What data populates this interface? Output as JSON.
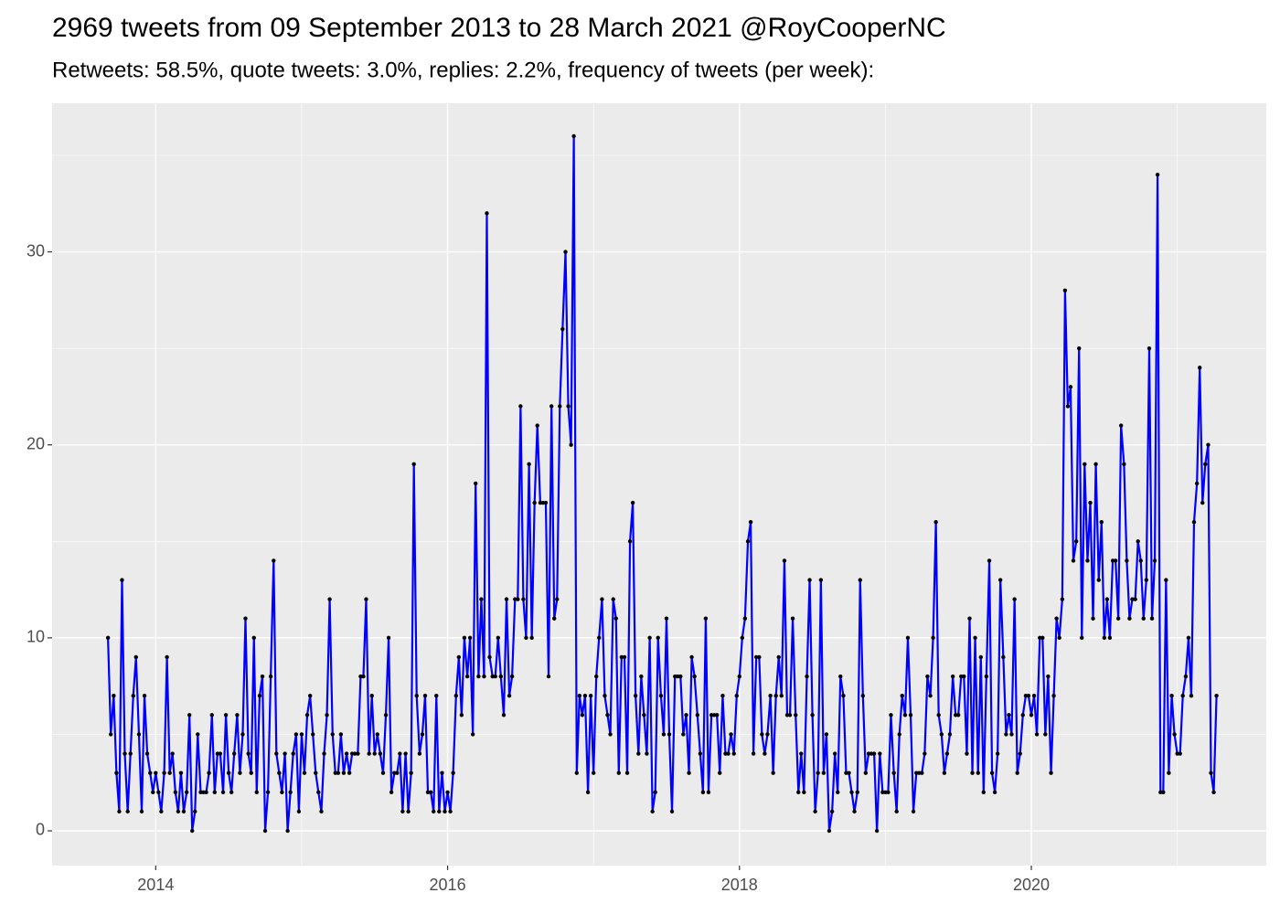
{
  "chart_data": {
    "type": "line",
    "title": "2969 tweets from 09 September 2013 to 28 March 2021 @RoyCooperNC",
    "subtitle": "Retweets: 58.5%, quote tweets: 3.0%, replies: 2.2%, frequency of tweets (per week):",
    "xlim": [
      2013.29,
      2021.61
    ],
    "xticks": [
      2014,
      2016,
      2018,
      2020
    ],
    "ylim": [
      -1.8,
      37.7
    ],
    "yticks": [
      0,
      10,
      20,
      30
    ],
    "grid": true,
    "line_color": "#0000ff",
    "point_color": "#000000",
    "x": [
      2013.673,
      2013.692,
      2013.712,
      2013.731,
      2013.75,
      2013.769,
      2013.788,
      2013.808,
      2013.827,
      2013.846,
      2013.865,
      2013.885,
      2013.904,
      2013.923,
      2013.942,
      2013.962,
      2013.981,
      2014.0,
      2014.019,
      2014.038,
      2014.058,
      2014.077,
      2014.096,
      2014.115,
      2014.135,
      2014.154,
      2014.173,
      2014.192,
      2014.212,
      2014.231,
      2014.25,
      2014.269,
      2014.288,
      2014.308,
      2014.327,
      2014.346,
      2014.365,
      2014.385,
      2014.404,
      2014.423,
      2014.442,
      2014.462,
      2014.481,
      2014.5,
      2014.519,
      2014.538,
      2014.558,
      2014.577,
      2014.596,
      2014.615,
      2014.635,
      2014.654,
      2014.673,
      2014.692,
      2014.712,
      2014.731,
      2014.75,
      2014.769,
      2014.788,
      2014.808,
      2014.827,
      2014.846,
      2014.865,
      2014.885,
      2014.904,
      2014.923,
      2014.942,
      2014.962,
      2014.981,
      2015.0,
      2015.019,
      2015.038,
      2015.058,
      2015.077,
      2015.096,
      2015.115,
      2015.135,
      2015.154,
      2015.173,
      2015.192,
      2015.212,
      2015.231,
      2015.25,
      2015.269,
      2015.288,
      2015.308,
      2015.327,
      2015.346,
      2015.365,
      2015.385,
      2015.404,
      2015.423,
      2015.442,
      2015.462,
      2015.481,
      2015.5,
      2015.519,
      2015.538,
      2015.558,
      2015.577,
      2015.596,
      2015.615,
      2015.635,
      2015.654,
      2015.673,
      2015.692,
      2015.712,
      2015.731,
      2015.75,
      2015.769,
      2015.788,
      2015.808,
      2015.827,
      2015.846,
      2015.865,
      2015.885,
      2015.904,
      2015.923,
      2015.942,
      2015.962,
      2015.981,
      2016.0,
      2016.019,
      2016.038,
      2016.058,
      2016.077,
      2016.096,
      2016.115,
      2016.135,
      2016.154,
      2016.173,
      2016.192,
      2016.212,
      2016.231,
      2016.25,
      2016.269,
      2016.288,
      2016.308,
      2016.327,
      2016.346,
      2016.365,
      2016.385,
      2016.404,
      2016.423,
      2016.442,
      2016.462,
      2016.481,
      2016.5,
      2016.519,
      2016.538,
      2016.558,
      2016.577,
      2016.596,
      2016.615,
      2016.635,
      2016.654,
      2016.673,
      2016.692,
      2016.712,
      2016.731,
      2016.75,
      2016.769,
      2016.788,
      2016.808,
      2016.827,
      2016.846,
      2016.865,
      2016.885,
      2016.904,
      2016.923,
      2016.942,
      2016.962,
      2016.981,
      2017.0,
      2017.019,
      2017.038,
      2017.058,
      2017.077,
      2017.096,
      2017.115,
      2017.135,
      2017.154,
      2017.173,
      2017.192,
      2017.212,
      2017.231,
      2017.25,
      2017.269,
      2017.288,
      2017.308,
      2017.327,
      2017.346,
      2017.365,
      2017.385,
      2017.404,
      2017.423,
      2017.442,
      2017.462,
      2017.481,
      2017.5,
      2017.519,
      2017.538,
      2017.558,
      2017.577,
      2017.596,
      2017.615,
      2017.635,
      2017.654,
      2017.673,
      2017.692,
      2017.712,
      2017.731,
      2017.75,
      2017.769,
      2017.788,
      2017.808,
      2017.827,
      2017.846,
      2017.865,
      2017.885,
      2017.904,
      2017.923,
      2017.942,
      2017.962,
      2017.981,
      2018.0,
      2018.019,
      2018.038,
      2018.058,
      2018.077,
      2018.096,
      2018.115,
      2018.135,
      2018.154,
      2018.173,
      2018.192,
      2018.212,
      2018.231,
      2018.25,
      2018.269,
      2018.288,
      2018.308,
      2018.327,
      2018.346,
      2018.365,
      2018.385,
      2018.404,
      2018.423,
      2018.442,
      2018.462,
      2018.481,
      2018.5,
      2018.519,
      2018.538,
      2018.558,
      2018.577,
      2018.596,
      2018.615,
      2018.635,
      2018.654,
      2018.673,
      2018.692,
      2018.712,
      2018.731,
      2018.75,
      2018.769,
      2018.788,
      2018.808,
      2018.827,
      2018.846,
      2018.865,
      2018.885,
      2018.904,
      2018.923,
      2018.942,
      2018.962,
      2018.981,
      2019.0,
      2019.019,
      2019.038,
      2019.058,
      2019.077,
      2019.096,
      2019.115,
      2019.135,
      2019.154,
      2019.173,
      2019.192,
      2019.212,
      2019.231,
      2019.25,
      2019.269,
      2019.288,
      2019.308,
      2019.327,
      2019.346,
      2019.365,
      2019.385,
      2019.404,
      2019.423,
      2019.442,
      2019.462,
      2019.481,
      2019.5,
      2019.519,
      2019.538,
      2019.558,
      2019.577,
      2019.596,
      2019.615,
      2019.635,
      2019.654,
      2019.673,
      2019.692,
      2019.712,
      2019.731,
      2019.75,
      2019.769,
      2019.788,
      2019.808,
      2019.827,
      2019.846,
      2019.865,
      2019.885,
      2019.904,
      2019.923,
      2019.942,
      2019.962,
      2019.981,
      2020.0,
      2020.019,
      2020.038,
      2020.058,
      2020.077,
      2020.096,
      2020.115,
      2020.135,
      2020.154,
      2020.173,
      2020.192,
      2020.212,
      2020.231,
      2020.25,
      2020.269,
      2020.288,
      2020.308,
      2020.327,
      2020.346,
      2020.365,
      2020.385,
      2020.404,
      2020.423,
      2020.442,
      2020.462,
      2020.481,
      2020.5,
      2020.519,
      2020.538,
      2020.558,
      2020.577,
      2020.596,
      2020.615,
      2020.635,
      2020.654,
      2020.673,
      2020.692,
      2020.712,
      2020.731,
      2020.75,
      2020.769,
      2020.788,
      2020.808,
      2020.827,
      2020.846,
      2020.865,
      2020.885,
      2020.904,
      2020.923,
      2020.942,
      2020.962,
      2020.981,
      2021.0,
      2021.019,
      2021.038,
      2021.058,
      2021.077,
      2021.096,
      2021.115,
      2021.135,
      2021.154,
      2021.173,
      2021.192,
      2021.212,
      2021.231,
      2021.25,
      2021.269
    ],
    "values": [
      10,
      5,
      7,
      3,
      1,
      13,
      4,
      1,
      4,
      7,
      9,
      5,
      1,
      7,
      4,
      3,
      2,
      3,
      2,
      1,
      3,
      9,
      3,
      4,
      2,
      1,
      3,
      1,
      2,
      6,
      0,
      1,
      5,
      2,
      2,
      2,
      3,
      6,
      2,
      4,
      4,
      2,
      6,
      3,
      2,
      4,
      6,
      3,
      5,
      11,
      4,
      3,
      10,
      2,
      7,
      8,
      0,
      2,
      8,
      14,
      4,
      3,
      2,
      4,
      0,
      2,
      4,
      5,
      1,
      5,
      3,
      6,
      7,
      5,
      3,
      2,
      1,
      4,
      6,
      12,
      5,
      3,
      3,
      5,
      3,
      4,
      3,
      4,
      4,
      4,
      8,
      8,
      12,
      4,
      7,
      4,
      5,
      4,
      3,
      6,
      10,
      2,
      3,
      3,
      4,
      1,
      4,
      1,
      3,
      19,
      7,
      4,
      5,
      7,
      2,
      2,
      1,
      7,
      1,
      3,
      1,
      2,
      1,
      3,
      7,
      9,
      6,
      10,
      8,
      10,
      5,
      18,
      8,
      12,
      8,
      32,
      9,
      8,
      8,
      10,
      8,
      6,
      12,
      7,
      8,
      12,
      12,
      22,
      12,
      10,
      19,
      10,
      17,
      21,
      17,
      17,
      17,
      8,
      22,
      11,
      12,
      22,
      26,
      30,
      22,
      20,
      36,
      3,
      7,
      6,
      7,
      2,
      7,
      3,
      8,
      10,
      12,
      7,
      6,
      5,
      12,
      11,
      3,
      9,
      9,
      3,
      15,
      17,
      7,
      4,
      8,
      6,
      4,
      10,
      1,
      2,
      10,
      7,
      5,
      11,
      5,
      1,
      8,
      8,
      8,
      5,
      6,
      3,
      9,
      8,
      6,
      4,
      2,
      11,
      2,
      6,
      6,
      6,
      3,
      7,
      4,
      4,
      5,
      4,
      7,
      8,
      10,
      11,
      15,
      16,
      4,
      9,
      9,
      5,
      4,
      5,
      7,
      3,
      7,
      9,
      7,
      14,
      6,
      6,
      11,
      6,
      2,
      4,
      2,
      8,
      13,
      6,
      1,
      3,
      13,
      3,
      5,
      0,
      1,
      4,
      2,
      8,
      7,
      3,
      3,
      2,
      1,
      2,
      13,
      7,
      3,
      4,
      4,
      4,
      0,
      4,
      2,
      2,
      2,
      6,
      3,
      1,
      5,
      7,
      6,
      10,
      6,
      1,
      3,
      3,
      3,
      4,
      8,
      7,
      10,
      16,
      6,
      5,
      3,
      4,
      5,
      8,
      6,
      6,
      8,
      8,
      4,
      11,
      3,
      10,
      3,
      9,
      2,
      8,
      14,
      3,
      2,
      4,
      13,
      9,
      5,
      6,
      5,
      12,
      3,
      4,
      6,
      7,
      7,
      6,
      7,
      5,
      10,
      10,
      5,
      8,
      3,
      7,
      11,
      10,
      12,
      28,
      22,
      23,
      14,
      15,
      25,
      10,
      19,
      14,
      17,
      11,
      19,
      13,
      16,
      10,
      12,
      10,
      14,
      14,
      11,
      21,
      19,
      14,
      11,
      12,
      12,
      15,
      14,
      11,
      13,
      25,
      11,
      14,
      34,
      2,
      2,
      13,
      3,
      7,
      5,
      4,
      4,
      7,
      8,
      10,
      7,
      16,
      18,
      24,
      17,
      19,
      20,
      3,
      2,
      7
    ]
  }
}
